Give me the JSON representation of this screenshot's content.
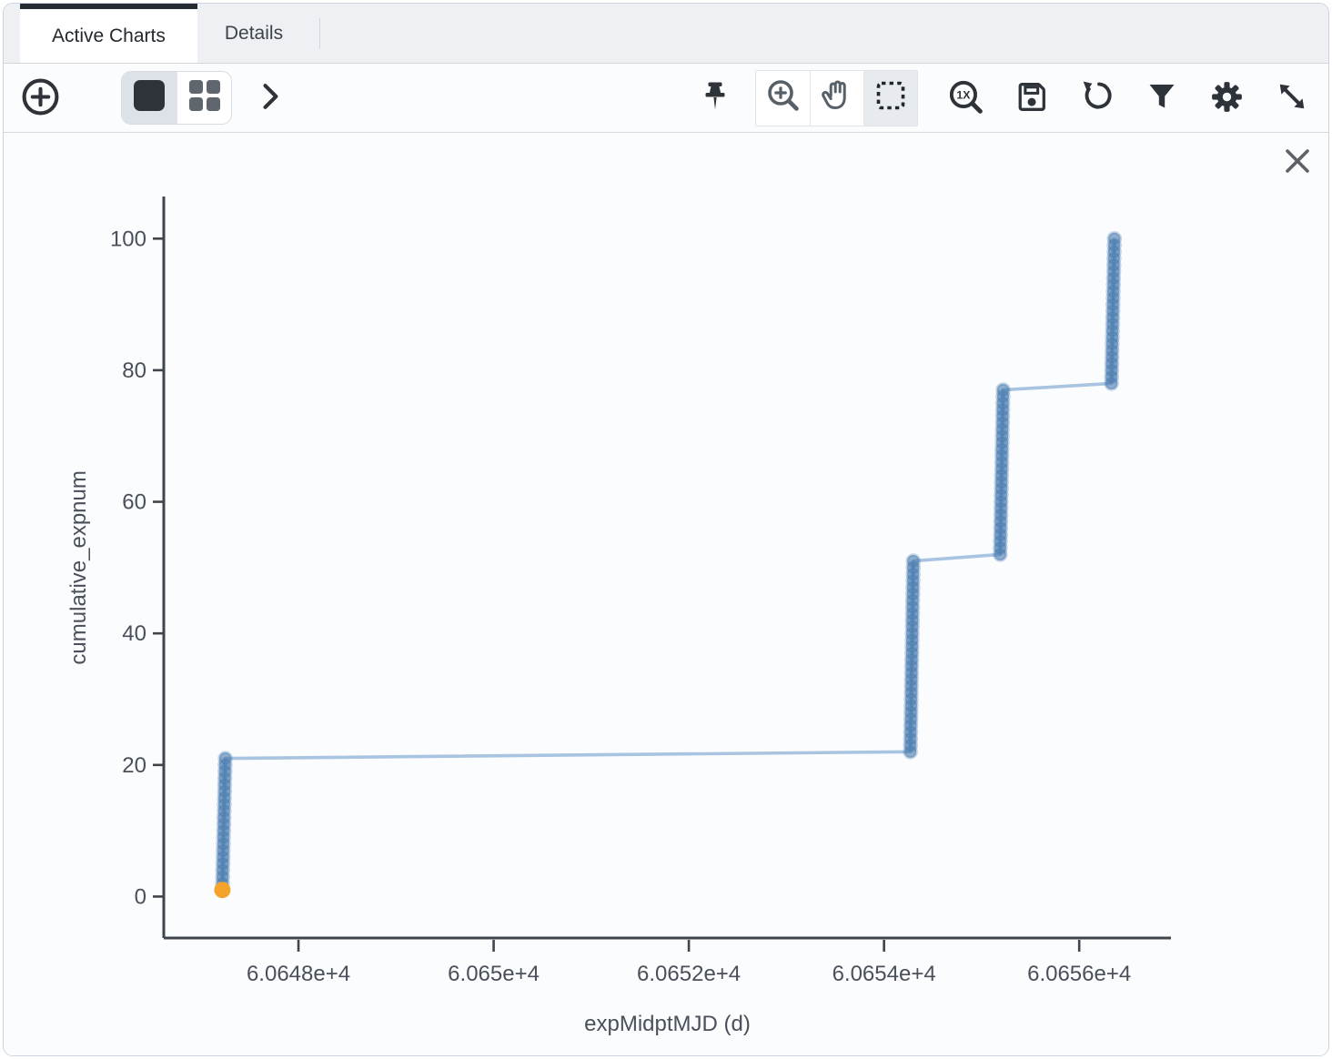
{
  "tabs": [
    {
      "label": "Active Charts",
      "active": true
    },
    {
      "label": "Details",
      "active": false
    }
  ],
  "toolbar": {
    "left": [
      {
        "name": "add-chart",
        "icon": "plus-circle-icon"
      },
      {
        "name": "single-view",
        "icon": "single-square-icon",
        "selected": true
      },
      {
        "name": "grid-view",
        "icon": "grid-squares-icon",
        "selected": false
      },
      {
        "name": "expand-toolbar",
        "icon": "chevron-right-icon"
      }
    ],
    "right": [
      {
        "name": "pin-chart",
        "icon": "pushpin-icon"
      },
      {
        "name": "zoom-mode",
        "icon": "magnifier-plus-icon",
        "selected": false
      },
      {
        "name": "pan-mode",
        "icon": "hand-icon",
        "selected": false
      },
      {
        "name": "select-mode",
        "icon": "dashed-rect-icon",
        "selected": true
      },
      {
        "name": "zoom-original",
        "icon": "magnifier-1x-icon"
      },
      {
        "name": "save-chart",
        "icon": "floppy-disk-icon"
      },
      {
        "name": "restore-chart",
        "icon": "rotate-left-icon"
      },
      {
        "name": "filter-chart",
        "icon": "funnel-icon"
      },
      {
        "name": "chart-settings",
        "icon": "gear-icon"
      },
      {
        "name": "expand-chart",
        "icon": "diagonal-arrows-icon"
      }
    ]
  },
  "chart": {
    "close_icon": "close-icon"
  },
  "chart_data": {
    "type": "scatter",
    "mode": "lines+markers",
    "title": "",
    "xlabel": "expMidptMJD (d)",
    "ylabel": "cumulative_expnum",
    "grid": false,
    "legend": false,
    "x_range": [
      60646.62,
      60656.94
    ],
    "y_range": [
      -6.3,
      106.4
    ],
    "x_ticks": {
      "values": [
        60648,
        60650,
        60652,
        60654,
        60656
      ],
      "labels": [
        "6.0648e+4",
        "6.065e+4",
        "6.0652e+4",
        "6.0654e+4",
        "6.0656e+4"
      ]
    },
    "y_ticks": {
      "values": [
        0,
        20,
        40,
        60,
        80,
        100
      ],
      "labels": [
        "0",
        "20",
        "40",
        "60",
        "80",
        "100"
      ]
    },
    "series_description": "cumulative exposure number vs exposure midpoint MJD, 100 points in 4 nightly clusters connected by a line",
    "clusters": [
      {
        "x_start": 60647.22,
        "x_end": 60647.25,
        "y_start": 1,
        "y_end": 21
      },
      {
        "x_start": 60654.27,
        "x_end": 60654.3,
        "y_start": 22,
        "y_end": 51
      },
      {
        "x_start": 60655.19,
        "x_end": 60655.22,
        "y_start": 52,
        "y_end": 77
      },
      {
        "x_start": 60656.33,
        "x_end": 60656.36,
        "y_start": 78,
        "y_end": 100
      }
    ],
    "highlighted_point": {
      "x": 60647.22,
      "y": 1
    }
  },
  "colors": {
    "window_border": "#ccd4dd",
    "tabbar_bg": "#eef0f3",
    "tabbar_border": "#d2d6db",
    "tab_active_topbar": "#262c33",
    "toolbar_bg": "#fbfcfd",
    "toolbar_border": "#d8dade",
    "card_bg": "#fbfcfe",
    "icon_dark": "#2d3339",
    "icon_gray": "#5a6168",
    "selected_cell_bg": "#dde2e8",
    "selected_mode_bg": "#e7eaee",
    "axis": "#3f454c",
    "tick_text": "#49505a",
    "marker": "#4779ae",
    "line": "#a9c4e0",
    "highlight": "#f5a42b"
  }
}
